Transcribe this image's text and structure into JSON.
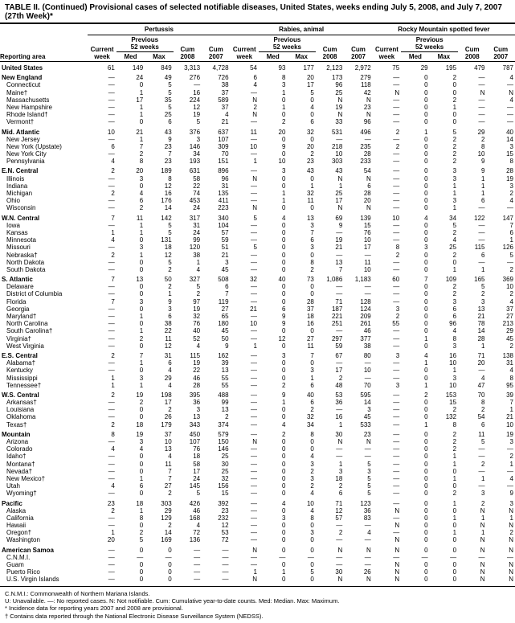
{
  "title": "TABLE II. (Continued) Provisional cases of selected notifiable diseases, United States, weeks ending July 5, 2008, and July 7, 2007 (27th Week)*",
  "diseases": [
    "Pertussis",
    "Rabies, animal",
    "Rocky Mountain spotted fever"
  ],
  "group_headers": {
    "current": "Current",
    "previous": "Previous",
    "weeks": "52 weeks",
    "cum": "Cum"
  },
  "col_headers": [
    "Reporting area",
    "week",
    "Med",
    "Max",
    "2008",
    "2007",
    "week",
    "Med",
    "Max",
    "2008",
    "2007",
    "week",
    "Med",
    "Max",
    "2008",
    "2007"
  ],
  "rows": [
    {
      "section": true,
      "area": "United States",
      "v": [
        "61",
        "149",
        "849",
        "3,313",
        "4,728",
        "54",
        "93",
        "177",
        "2,123",
        "2,972",
        "75",
        "29",
        "195",
        "479",
        "787"
      ]
    },
    {
      "section": true,
      "area": "New England",
      "v": [
        "—",
        "24",
        "49",
        "276",
        "726",
        "6",
        "8",
        "20",
        "173",
        "279",
        "—",
        "0",
        "2",
        "—",
        "4"
      ]
    },
    {
      "area": "Connecticut",
      "v": [
        "—",
        "0",
        "5",
        "—",
        "38",
        "4",
        "3",
        "17",
        "96",
        "118",
        "—",
        "0",
        "0",
        "—",
        "—"
      ]
    },
    {
      "area": "Maine†",
      "v": [
        "—",
        "1",
        "5",
        "16",
        "37",
        "—",
        "1",
        "5",
        "25",
        "42",
        "N",
        "0",
        "0",
        "N",
        "N"
      ]
    },
    {
      "area": "Massachusetts",
      "v": [
        "—",
        "17",
        "35",
        "224",
        "589",
        "N",
        "0",
        "0",
        "N",
        "N",
        "—",
        "0",
        "2",
        "—",
        "4"
      ]
    },
    {
      "area": "New Hampshire",
      "v": [
        "—",
        "1",
        "5",
        "12",
        "37",
        "2",
        "1",
        "4",
        "19",
        "23",
        "—",
        "0",
        "1",
        "—",
        "—"
      ]
    },
    {
      "area": "Rhode Island†",
      "v": [
        "—",
        "1",
        "25",
        "19",
        "4",
        "N",
        "0",
        "0",
        "N",
        "N",
        "—",
        "0",
        "0",
        "—",
        "—"
      ]
    },
    {
      "area": "Vermont†",
      "v": [
        "—",
        "0",
        "6",
        "5",
        "21",
        "—",
        "2",
        "6",
        "33",
        "96",
        "—",
        "0",
        "0",
        "—",
        "—"
      ]
    },
    {
      "section": true,
      "area": "Mid. Atlantic",
      "v": [
        "10",
        "21",
        "43",
        "376",
        "637",
        "11",
        "20",
        "32",
        "531",
        "496",
        "2",
        "1",
        "5",
        "29",
        "40"
      ]
    },
    {
      "area": "New Jersey",
      "v": [
        "—",
        "1",
        "9",
        "3",
        "107",
        "—",
        "0",
        "0",
        "—",
        "—",
        "—",
        "0",
        "2",
        "2",
        "14"
      ]
    },
    {
      "area": "New York (Upstate)",
      "v": [
        "6",
        "7",
        "23",
        "146",
        "309",
        "10",
        "9",
        "20",
        "218",
        "235",
        "2",
        "0",
        "2",
        "8",
        "3"
      ]
    },
    {
      "area": "New York City",
      "v": [
        "—",
        "2",
        "7",
        "34",
        "70",
        "—",
        "0",
        "2",
        "10",
        "28",
        "—",
        "0",
        "2",
        "10",
        "15"
      ]
    },
    {
      "area": "Pennsylvania",
      "v": [
        "4",
        "8",
        "23",
        "193",
        "151",
        "1",
        "10",
        "23",
        "303",
        "233",
        "—",
        "0",
        "2",
        "9",
        "8"
      ]
    },
    {
      "section": true,
      "area": "E.N. Central",
      "v": [
        "2",
        "20",
        "189",
        "631",
        "896",
        "—",
        "3",
        "43",
        "43",
        "54",
        "—",
        "0",
        "3",
        "9",
        "28"
      ]
    },
    {
      "area": "Illinois",
      "v": [
        "—",
        "3",
        "8",
        "58",
        "96",
        "N",
        "0",
        "0",
        "N",
        "N",
        "—",
        "0",
        "3",
        "1",
        "19"
      ]
    },
    {
      "area": "Indiana",
      "v": [
        "—",
        "0",
        "12",
        "22",
        "31",
        "—",
        "0",
        "1",
        "1",
        "6",
        "—",
        "0",
        "1",
        "1",
        "3"
      ]
    },
    {
      "area": "Michigan",
      "v": [
        "2",
        "4",
        "16",
        "74",
        "135",
        "—",
        "1",
        "32",
        "25",
        "28",
        "—",
        "0",
        "1",
        "1",
        "2"
      ]
    },
    {
      "area": "Ohio",
      "v": [
        "—",
        "6",
        "176",
        "453",
        "411",
        "—",
        "1",
        "11",
        "17",
        "20",
        "—",
        "0",
        "3",
        "6",
        "4"
      ]
    },
    {
      "area": "Wisconsin",
      "v": [
        "—",
        "2",
        "14",
        "24",
        "223",
        "N",
        "0",
        "0",
        "N",
        "N",
        "—",
        "0",
        "1",
        "—",
        "—"
      ]
    },
    {
      "section": true,
      "area": "W.N. Central",
      "v": [
        "7",
        "11",
        "142",
        "317",
        "340",
        "5",
        "4",
        "13",
        "69",
        "139",
        "10",
        "4",
        "34",
        "122",
        "147"
      ]
    },
    {
      "area": "Iowa",
      "v": [
        "—",
        "1",
        "5",
        "31",
        "104",
        "—",
        "0",
        "3",
        "9",
        "15",
        "—",
        "0",
        "5",
        "—",
        "7"
      ]
    },
    {
      "area": "Kansas",
      "v": [
        "1",
        "1",
        "5",
        "24",
        "57",
        "—",
        "0",
        "7",
        "—",
        "76",
        "—",
        "0",
        "2",
        "—",
        "6"
      ]
    },
    {
      "area": "Minnesota",
      "v": [
        "4",
        "0",
        "131",
        "99",
        "59",
        "—",
        "0",
        "6",
        "19",
        "10",
        "—",
        "0",
        "4",
        "—",
        "1"
      ]
    },
    {
      "area": "Missouri",
      "v": [
        "—",
        "3",
        "18",
        "120",
        "51",
        "5",
        "0",
        "3",
        "21",
        "17",
        "8",
        "3",
        "25",
        "115",
        "126"
      ]
    },
    {
      "area": "Nebraska†",
      "v": [
        "2",
        "1",
        "12",
        "38",
        "21",
        "—",
        "0",
        "0",
        "—",
        "—",
        "2",
        "0",
        "2",
        "6",
        "5"
      ]
    },
    {
      "area": "North Dakota",
      "v": [
        "—",
        "0",
        "5",
        "1",
        "3",
        "—",
        "0",
        "8",
        "13",
        "11",
        "—",
        "0",
        "0",
        "—",
        "—"
      ]
    },
    {
      "area": "South Dakota",
      "v": [
        "—",
        "0",
        "2",
        "4",
        "45",
        "—",
        "0",
        "2",
        "7",
        "10",
        "—",
        "0",
        "1",
        "1",
        "2"
      ]
    },
    {
      "section": true,
      "area": "S. Atlantic",
      "v": [
        "7",
        "13",
        "50",
        "327",
        "508",
        "32",
        "40",
        "73",
        "1,086",
        "1,183",
        "60",
        "7",
        "109",
        "165",
        "369"
      ]
    },
    {
      "area": "Delaware",
      "v": [
        "—",
        "0",
        "2",
        "5",
        "6",
        "—",
        "0",
        "0",
        "—",
        "—",
        "—",
        "0",
        "2",
        "5",
        "10"
      ]
    },
    {
      "area": "District of Columbia",
      "v": [
        "—",
        "0",
        "1",
        "2",
        "7",
        "—",
        "0",
        "0",
        "—",
        "—",
        "—",
        "0",
        "2",
        "2",
        "2"
      ]
    },
    {
      "area": "Florida",
      "v": [
        "7",
        "3",
        "9",
        "97",
        "119",
        "—",
        "0",
        "28",
        "71",
        "128",
        "—",
        "0",
        "3",
        "3",
        "4"
      ]
    },
    {
      "area": "Georgia",
      "v": [
        "—",
        "0",
        "3",
        "19",
        "27",
        "21",
        "6",
        "37",
        "187",
        "124",
        "3",
        "0",
        "6",
        "13",
        "37"
      ]
    },
    {
      "area": "Maryland†",
      "v": [
        "—",
        "1",
        "6",
        "32",
        "65",
        "—",
        "9",
        "18",
        "221",
        "209",
        "2",
        "0",
        "6",
        "21",
        "27"
      ]
    },
    {
      "area": "North Carolina",
      "v": [
        "—",
        "0",
        "38",
        "76",
        "180",
        "10",
        "9",
        "16",
        "251",
        "261",
        "55",
        "0",
        "96",
        "78",
        "213"
      ]
    },
    {
      "area": "South Carolina†",
      "v": [
        "—",
        "1",
        "22",
        "40",
        "45",
        "—",
        "0",
        "0",
        "—",
        "46",
        "—",
        "0",
        "4",
        "14",
        "29"
      ]
    },
    {
      "area": "Virginia†",
      "v": [
        "—",
        "2",
        "11",
        "52",
        "50",
        "—",
        "12",
        "27",
        "297",
        "377",
        "—",
        "1",
        "8",
        "28",
        "45"
      ]
    },
    {
      "area": "West Virginia",
      "v": [
        "—",
        "0",
        "12",
        "4",
        "9",
        "1",
        "0",
        "11",
        "59",
        "38",
        "—",
        "0",
        "3",
        "1",
        "2"
      ]
    },
    {
      "section": true,
      "area": "E.S. Central",
      "v": [
        "2",
        "7",
        "31",
        "115",
        "162",
        "—",
        "3",
        "7",
        "67",
        "80",
        "3",
        "4",
        "16",
        "71",
        "138"
      ]
    },
    {
      "area": "Alabama†",
      "v": [
        "—",
        "1",
        "6",
        "19",
        "39",
        "—",
        "0",
        "0",
        "—",
        "—",
        "—",
        "1",
        "10",
        "20",
        "31"
      ]
    },
    {
      "area": "Kentucky",
      "v": [
        "—",
        "0",
        "4",
        "22",
        "13",
        "—",
        "0",
        "3",
        "17",
        "10",
        "—",
        "0",
        "1",
        "—",
        "4"
      ]
    },
    {
      "area": "Mississippi",
      "v": [
        "1",
        "3",
        "29",
        "46",
        "55",
        "—",
        "0",
        "1",
        "2",
        "—",
        "—",
        "0",
        "3",
        "4",
        "8"
      ]
    },
    {
      "area": "Tennessee†",
      "v": [
        "1",
        "1",
        "4",
        "28",
        "55",
        "—",
        "2",
        "6",
        "48",
        "70",
        "3",
        "1",
        "10",
        "47",
        "95"
      ]
    },
    {
      "section": true,
      "area": "W.S. Central",
      "v": [
        "2",
        "19",
        "198",
        "395",
        "488",
        "—",
        "9",
        "40",
        "53",
        "595",
        "—",
        "2",
        "153",
        "70",
        "39"
      ]
    },
    {
      "area": "Arkansas†",
      "v": [
        "—",
        "2",
        "17",
        "36",
        "99",
        "—",
        "1",
        "6",
        "36",
        "14",
        "—",
        "0",
        "15",
        "8",
        "7"
      ]
    },
    {
      "area": "Louisiana",
      "v": [
        "—",
        "0",
        "2",
        "3",
        "13",
        "—",
        "0",
        "2",
        "—",
        "3",
        "—",
        "0",
        "2",
        "2",
        "1"
      ]
    },
    {
      "area": "Oklahoma",
      "v": [
        "—",
        "0",
        "26",
        "13",
        "2",
        "—",
        "0",
        "32",
        "16",
        "45",
        "—",
        "0",
        "132",
        "54",
        "21"
      ]
    },
    {
      "area": "Texas†",
      "v": [
        "2",
        "18",
        "179",
        "343",
        "374",
        "—",
        "4",
        "34",
        "1",
        "533",
        "—",
        "1",
        "8",
        "6",
        "10"
      ]
    },
    {
      "section": true,
      "area": "Mountain",
      "v": [
        "8",
        "19",
        "37",
        "450",
        "579",
        "—",
        "2",
        "8",
        "30",
        "23",
        "—",
        "0",
        "2",
        "11",
        "19"
      ]
    },
    {
      "area": "Arizona",
      "v": [
        "—",
        "3",
        "10",
        "107",
        "150",
        "N",
        "0",
        "0",
        "N",
        "N",
        "—",
        "0",
        "2",
        "5",
        "3"
      ]
    },
    {
      "area": "Colorado",
      "v": [
        "4",
        "4",
        "13",
        "76",
        "146",
        "—",
        "0",
        "0",
        "—",
        "—",
        "—",
        "0",
        "2",
        "—",
        "—"
      ]
    },
    {
      "area": "Idaho†",
      "v": [
        "—",
        "0",
        "4",
        "18",
        "25",
        "—",
        "0",
        "4",
        "—",
        "—",
        "—",
        "0",
        "1",
        "—",
        "2"
      ]
    },
    {
      "area": "Montana†",
      "v": [
        "—",
        "0",
        "11",
        "58",
        "30",
        "—",
        "0",
        "3",
        "1",
        "5",
        "—",
        "0",
        "1",
        "2",
        "1"
      ]
    },
    {
      "area": "Nevada†",
      "v": [
        "—",
        "0",
        "7",
        "17",
        "25",
        "—",
        "0",
        "2",
        "3",
        "3",
        "—",
        "0",
        "0",
        "—",
        "—"
      ]
    },
    {
      "area": "New Mexico†",
      "v": [
        "—",
        "1",
        "7",
        "24",
        "32",
        "—",
        "0",
        "3",
        "18",
        "5",
        "—",
        "0",
        "1",
        "1",
        "4"
      ]
    },
    {
      "area": "Utah",
      "v": [
        "4",
        "6",
        "27",
        "145",
        "156",
        "—",
        "0",
        "2",
        "2",
        "5",
        "—",
        "0",
        "0",
        "—",
        "—"
      ]
    },
    {
      "area": "Wyoming†",
      "v": [
        "—",
        "0",
        "2",
        "5",
        "15",
        "—",
        "0",
        "4",
        "6",
        "5",
        "—",
        "0",
        "2",
        "3",
        "9"
      ]
    },
    {
      "section": true,
      "area": "Pacific",
      "v": [
        "23",
        "18",
        "303",
        "426",
        "392",
        "—",
        "4",
        "10",
        "71",
        "123",
        "—",
        "0",
        "1",
        "2",
        "3"
      ]
    },
    {
      "area": "Alaska",
      "v": [
        "2",
        "1",
        "29",
        "46",
        "23",
        "—",
        "0",
        "4",
        "12",
        "36",
        "N",
        "0",
        "0",
        "N",
        "N"
      ]
    },
    {
      "area": "California",
      "v": [
        "—",
        "8",
        "129",
        "168",
        "232",
        "—",
        "3",
        "8",
        "57",
        "83",
        "—",
        "0",
        "1",
        "1",
        "1"
      ]
    },
    {
      "area": "Hawaii",
      "v": [
        "—",
        "0",
        "2",
        "4",
        "12",
        "—",
        "0",
        "0",
        "—",
        "—",
        "N",
        "0",
        "0",
        "N",
        "N"
      ]
    },
    {
      "area": "Oregon†",
      "v": [
        "1",
        "2",
        "14",
        "72",
        "53",
        "—",
        "0",
        "3",
        "2",
        "4",
        "—",
        "0",
        "1",
        "1",
        "2"
      ]
    },
    {
      "area": "Washington",
      "v": [
        "20",
        "5",
        "169",
        "136",
        "72",
        "—",
        "0",
        "0",
        "—",
        "—",
        "N",
        "0",
        "0",
        "N",
        "N"
      ]
    },
    {
      "section": true,
      "area": "American Samoa",
      "v": [
        "—",
        "0",
        "0",
        "—",
        "—",
        "N",
        "0",
        "0",
        "N",
        "N",
        "N",
        "0",
        "0",
        "N",
        "N"
      ]
    },
    {
      "area": "C.N.M.I.",
      "v": [
        "—",
        "—",
        "—",
        "—",
        "—",
        "—",
        "—",
        "—",
        "—",
        "—",
        "—",
        "—",
        "—",
        "—",
        "—"
      ]
    },
    {
      "area": "Guam",
      "v": [
        "—",
        "0",
        "0",
        "—",
        "—",
        "—",
        "0",
        "0",
        "—",
        "—",
        "N",
        "0",
        "0",
        "N",
        "N"
      ]
    },
    {
      "area": "Puerto Rico",
      "v": [
        "—",
        "0",
        "0",
        "—",
        "—",
        "1",
        "1",
        "5",
        "30",
        "26",
        "N",
        "0",
        "0",
        "N",
        "N"
      ]
    },
    {
      "area": "U.S. Virgin Islands",
      "v": [
        "—",
        "0",
        "0",
        "—",
        "—",
        "N",
        "0",
        "0",
        "N",
        "N",
        "N",
        "0",
        "0",
        "N",
        "N"
      ]
    }
  ],
  "footnotes": [
    "C.N.M.I.: Commonwealth of Northern Mariana Islands.",
    "U: Unavailable.   —: No reported cases.   N: Not notifiable.   Cum: Cumulative year-to-date counts.   Med: Median.   Max: Maximum.",
    "* Incidence data for reporting years 2007 and 2008 are provisional.",
    "† Contains data reported through the National Electronic Disease Surveillance System (NEDSS)."
  ]
}
